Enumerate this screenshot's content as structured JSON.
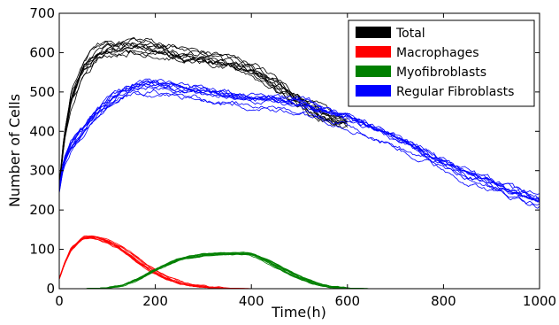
{
  "chart_data": {
    "type": "line",
    "title": "",
    "xlabel": "Time(h)",
    "ylabel": "Number of Cells",
    "xlim": [
      0,
      1000
    ],
    "ylim": [
      0,
      700
    ],
    "xticks": [
      "0",
      "200",
      "400",
      "600",
      "800",
      "1000"
    ],
    "yticks": [
      "0",
      "100",
      "200",
      "300",
      "400",
      "500",
      "600",
      "700"
    ],
    "grid": false,
    "legend_position": "top-right",
    "replicates_per_series": 10,
    "series": [
      {
        "name": "Total",
        "color": "#000000",
        "x": [
          0,
          10,
          25,
          50,
          75,
          100,
          125,
          150,
          175,
          200,
          250,
          300,
          350,
          400,
          450,
          500,
          550,
          600
        ],
        "y": [
          260,
          380,
          480,
          560,
          595,
          610,
          615,
          618,
          615,
          612,
          598,
          585,
          575,
          560,
          525,
          480,
          440,
          420
        ]
      },
      {
        "name": "Macrophages",
        "color": "#ff0000",
        "x": [
          0,
          10,
          25,
          50,
          75,
          100,
          125,
          150,
          175,
          200,
          225,
          250,
          275,
          300,
          350,
          400
        ],
        "y": [
          25,
          60,
          100,
          128,
          130,
          120,
          105,
          85,
          62,
          42,
          26,
          15,
          8,
          4,
          1,
          0
        ]
      },
      {
        "name": "Myofibroblasts",
        "color": "#008000",
        "x": [
          0,
          50,
          100,
          130,
          160,
          200,
          250,
          300,
          350,
          400,
          430,
          460,
          500,
          530,
          560,
          600,
          650,
          720
        ],
        "y": [
          0,
          0,
          2,
          8,
          22,
          48,
          75,
          86,
          89,
          88,
          72,
          52,
          28,
          14,
          5,
          1,
          0,
          0
        ]
      },
      {
        "name": "Regular Fibroblasts",
        "color": "#0000ff",
        "x": [
          0,
          10,
          25,
          50,
          75,
          100,
          125,
          150,
          175,
          200,
          250,
          300,
          350,
          400,
          450,
          500,
          550,
          600,
          650,
          700,
          750,
          800,
          850,
          900,
          950,
          1000
        ],
        "y": [
          250,
          320,
          360,
          400,
          440,
          470,
          490,
          505,
          510,
          510,
          502,
          495,
          485,
          478,
          470,
          465,
          448,
          430,
          405,
          375,
          345,
          315,
          285,
          260,
          240,
          220
        ]
      }
    ]
  }
}
